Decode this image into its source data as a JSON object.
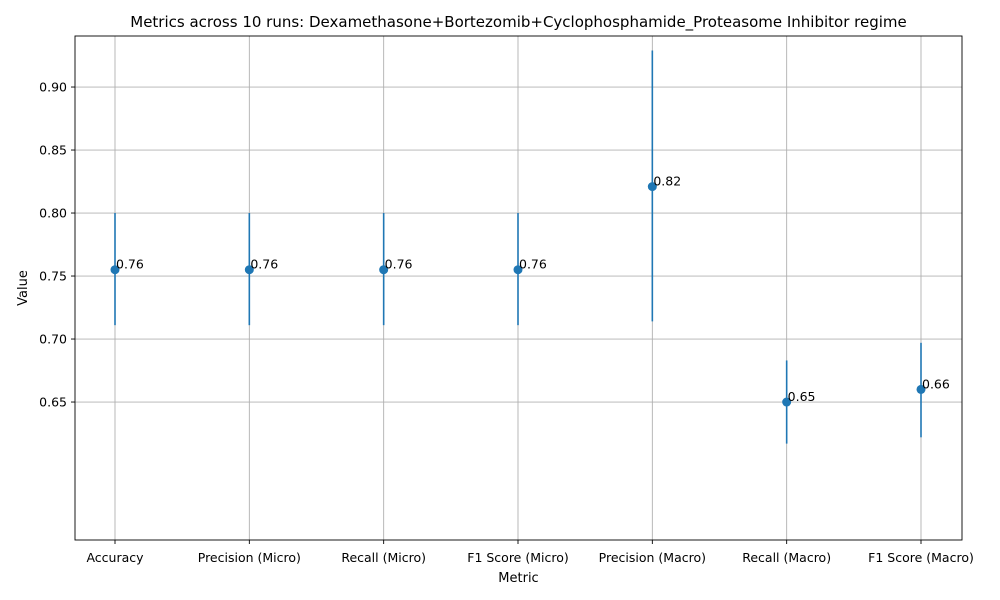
{
  "chart_data": {
    "type": "scatter",
    "title": "Metrics across 10 runs: Dexamethasone+Bortezomib+Cyclophosphamide_Proteasome Inhibitor regime",
    "xlabel": "Metric",
    "ylabel": "Value",
    "categories": [
      "Accuracy",
      "Precision (Micro)",
      "Recall (Micro)",
      "F1 Score (Micro)",
      "Precision (Macro)",
      "Recall (Macro)",
      "F1 Score (Macro)"
    ],
    "values": [
      0.755,
      0.755,
      0.755,
      0.755,
      0.821,
      0.65,
      0.66
    ],
    "value_labels": [
      "0.76",
      "0.76",
      "0.76",
      "0.76",
      "0.82",
      "0.65",
      "0.66"
    ],
    "error_low": [
      0.711,
      0.711,
      0.711,
      0.711,
      0.714,
      0.617,
      0.622
    ],
    "error_high": [
      0.8,
      0.8,
      0.8,
      0.8,
      0.929,
      0.683,
      0.697
    ],
    "ylim": [
      0.5405,
      0.9405
    ],
    "yticks": [
      0.65,
      0.7,
      0.75,
      0.8,
      0.85,
      0.9
    ],
    "ytick_labels": [
      "0.65",
      "0.70",
      "0.75",
      "0.80",
      "0.85",
      "0.90"
    ],
    "grid": true,
    "color": "#1f77b4"
  }
}
